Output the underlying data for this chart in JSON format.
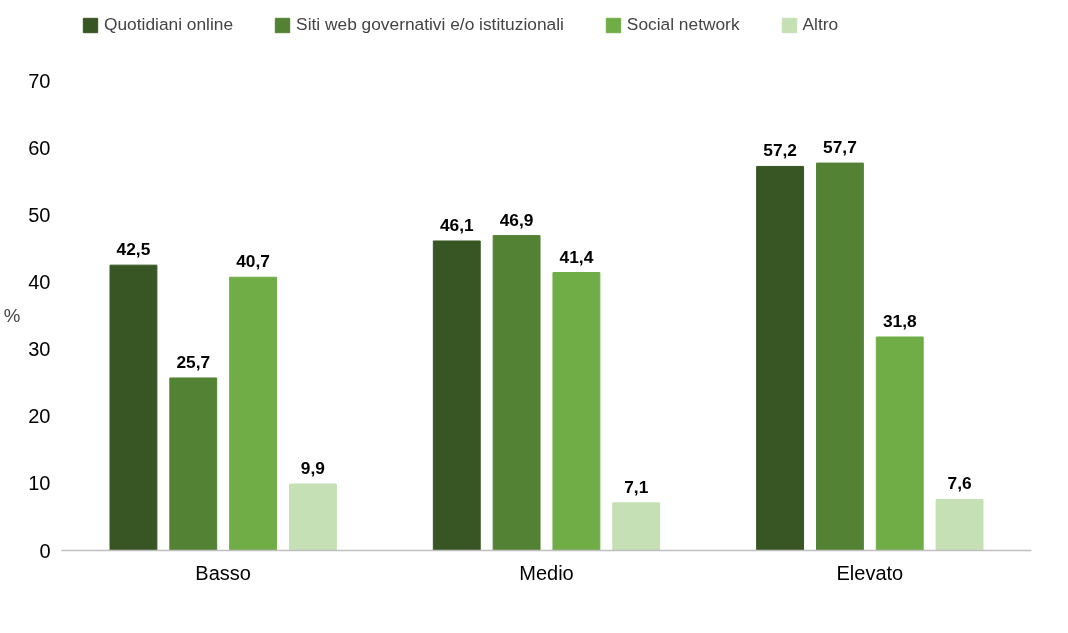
{
  "chart_data": {
    "type": "bar",
    "ylabel": "%",
    "categories": [
      "Basso",
      "Medio",
      "Elevato"
    ],
    "series": [
      {
        "name": "Quotidiani online",
        "color": "#375623",
        "values": [
          42.5,
          46.1,
          57.2
        ],
        "value_labels": [
          "42,5",
          "46,1",
          "57,2"
        ]
      },
      {
        "name": "Siti web governativi e/o istituzionali",
        "color": "#548235",
        "values": [
          25.7,
          46.9,
          57.7
        ],
        "value_labels": [
          "25,7",
          "46,9",
          "57,7"
        ]
      },
      {
        "name": "Social network",
        "color": "#70ad47",
        "values": [
          40.7,
          41.4,
          31.8
        ],
        "value_labels": [
          "40,7",
          "41,4",
          "31,8"
        ]
      },
      {
        "name": "Altro",
        "color": "#c5e0b4",
        "values": [
          9.9,
          7.1,
          7.6
        ],
        "value_labels": [
          "9,9",
          "7,1",
          "7,6"
        ]
      }
    ],
    "ylim": [
      0,
      70
    ],
    "yticks": [
      0,
      10,
      20,
      30,
      40,
      50,
      60,
      70
    ],
    "grid": false,
    "legend": "top"
  }
}
